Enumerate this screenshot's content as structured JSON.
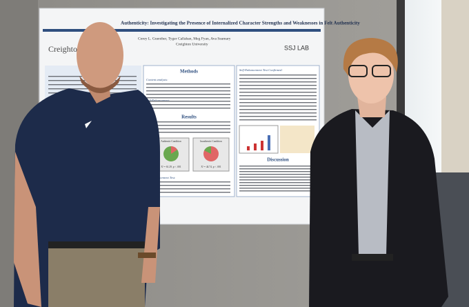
{
  "poster": {
    "title": "Authenticity: Investigating the Presence of Internalized Character Strengths and Weaknesses in Felt Authenticity",
    "authors": "Corey L. Guenther, Tyger Callahan, Meg Fyan, Ava Seamary",
    "affiliation": "Creighton University",
    "logo_left": "Creighton",
    "logo_right": "SSJ LAB",
    "sections": [
      "Methods",
      "Results",
      "Discussion"
    ],
    "subheads": [
      "Content analysis:",
      "Self-Enhancement:",
      "Self-Enhancement Test Confirmed:",
      "Self-Enhancement Test:"
    ],
    "charts": [
      {
        "label": "Authentic Condition",
        "stat": "X² = 61.29, p < .001"
      },
      {
        "label": "Inauthentic Condition",
        "stat": "X² = 44.74, p < .001"
      }
    ]
  }
}
